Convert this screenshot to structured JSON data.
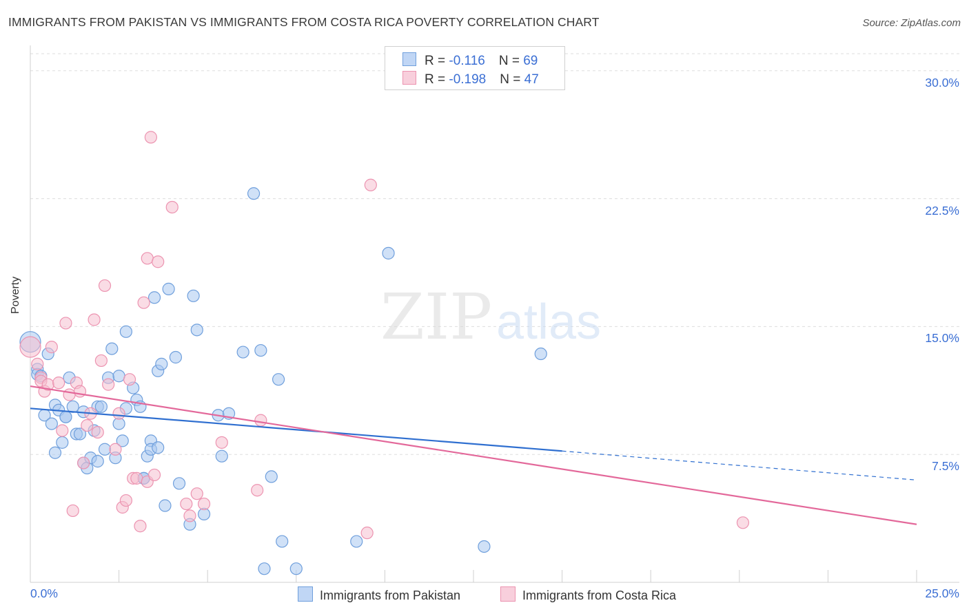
{
  "header": {
    "title": "IMMIGRANTS FROM PAKISTAN VS IMMIGRANTS FROM COSTA RICA POVERTY CORRELATION CHART",
    "source": "Source: ZipAtlas.com"
  },
  "watermark": {
    "zip": "ZIP",
    "atlas": "atlas"
  },
  "legend": {
    "rows": [
      {
        "r_label": "R = ",
        "r_value": "-0.116",
        "n_label": "N = ",
        "n_value": "69"
      },
      {
        "r_label": "R = ",
        "r_value": "-0.198",
        "n_label": "N = ",
        "n_value": "47"
      }
    ]
  },
  "colors": {
    "pakistan_fill": "#a9c8f0",
    "pakistan_stroke": "#6f9fdc",
    "pakistan_line": "#2f6fd0",
    "costarica_fill": "#f6bfd0",
    "costarica_stroke": "#ec93b0",
    "costarica_line": "#e3689a",
    "tick_color": "#3b6fd4",
    "grid": "#dddddd"
  },
  "chart_data": {
    "type": "scatter",
    "title": "IMMIGRANTS FROM PAKISTAN VS IMMIGRANTS FROM COSTA RICA POVERTY CORRELATION CHART",
    "xlabel": "",
    "ylabel": "Poverty",
    "xlim": [
      0,
      25
    ],
    "ylim": [
      0,
      31
    ],
    "x_tick_labels": [
      "0.0%",
      "25.0%"
    ],
    "y_ticks": [
      7.5,
      15.0,
      22.5,
      30.0
    ],
    "y_tick_labels": [
      "7.5%",
      "15.0%",
      "22.5%",
      "30.0%"
    ],
    "grid": "horizontal dashed",
    "legend_position": "top-center",
    "series": [
      {
        "name": "Immigrants from Pakistan",
        "trend": {
          "x": [
            0,
            15
          ],
          "y": [
            10.2,
            7.7
          ],
          "dashed_extension_to": [
            25,
            6.0
          ]
        },
        "points": [
          [
            0.0,
            14.1
          ],
          [
            0.2,
            12.5
          ],
          [
            0.2,
            12.2
          ],
          [
            0.3,
            12.1
          ],
          [
            0.5,
            13.4
          ],
          [
            0.4,
            9.8
          ],
          [
            0.6,
            9.3
          ],
          [
            0.7,
            10.4
          ],
          [
            0.7,
            7.6
          ],
          [
            0.8,
            10.1
          ],
          [
            0.9,
            8.2
          ],
          [
            1.0,
            9.7
          ],
          [
            1.0,
            9.7
          ],
          [
            1.1,
            12.0
          ],
          [
            1.2,
            10.3
          ],
          [
            1.3,
            8.7
          ],
          [
            1.4,
            8.7
          ],
          [
            1.5,
            10.0
          ],
          [
            1.5,
            7.0
          ],
          [
            1.6,
            6.7
          ],
          [
            1.7,
            7.3
          ],
          [
            1.8,
            8.9
          ],
          [
            1.9,
            7.1
          ],
          [
            1.9,
            10.3
          ],
          [
            2.0,
            10.3
          ],
          [
            2.1,
            7.8
          ],
          [
            2.2,
            12.0
          ],
          [
            2.3,
            13.7
          ],
          [
            2.4,
            7.3
          ],
          [
            2.5,
            12.1
          ],
          [
            2.5,
            9.3
          ],
          [
            2.6,
            8.3
          ],
          [
            2.7,
            14.7
          ],
          [
            2.7,
            10.2
          ],
          [
            2.9,
            11.4
          ],
          [
            3.0,
            10.7
          ],
          [
            3.1,
            10.3
          ],
          [
            3.2,
            6.1
          ],
          [
            3.2,
            6.1
          ],
          [
            3.3,
            7.4
          ],
          [
            3.4,
            8.3
          ],
          [
            3.4,
            7.8
          ],
          [
            3.5,
            16.7
          ],
          [
            3.6,
            7.9
          ],
          [
            3.6,
            12.4
          ],
          [
            3.7,
            12.8
          ],
          [
            3.8,
            4.5
          ],
          [
            3.9,
            17.2
          ],
          [
            4.1,
            13.2
          ],
          [
            4.2,
            5.8
          ],
          [
            4.5,
            3.4
          ],
          [
            4.6,
            16.8
          ],
          [
            4.7,
            14.8
          ],
          [
            4.9,
            4.0
          ],
          [
            5.3,
            9.8
          ],
          [
            5.4,
            7.4
          ],
          [
            5.6,
            9.9
          ],
          [
            6.3,
            22.8
          ],
          [
            6.5,
            13.6
          ],
          [
            6.6,
            0.8
          ],
          [
            6.8,
            6.2
          ],
          [
            7.0,
            11.9
          ],
          [
            7.1,
            2.4
          ],
          [
            7.5,
            0.8
          ],
          [
            9.2,
            2.4
          ],
          [
            10.1,
            19.3
          ],
          [
            12.8,
            2.1
          ],
          [
            14.4,
            13.4
          ],
          [
            6.0,
            13.5
          ]
        ]
      },
      {
        "name": "Immigrants from Costa Rica",
        "trend": {
          "x": [
            0,
            25
          ],
          "y": [
            11.5,
            3.4
          ]
        },
        "points": [
          [
            0.0,
            13.8
          ],
          [
            0.2,
            12.8
          ],
          [
            0.3,
            12.0
          ],
          [
            0.3,
            11.8
          ],
          [
            0.4,
            11.2
          ],
          [
            0.5,
            11.6
          ],
          [
            0.6,
            13.8
          ],
          [
            0.8,
            11.7
          ],
          [
            0.9,
            8.9
          ],
          [
            1.0,
            15.2
          ],
          [
            1.1,
            11.0
          ],
          [
            1.2,
            4.2
          ],
          [
            1.3,
            11.7
          ],
          [
            1.4,
            11.2
          ],
          [
            1.5,
            7.0
          ],
          [
            1.6,
            9.2
          ],
          [
            1.7,
            9.9
          ],
          [
            1.8,
            15.4
          ],
          [
            1.9,
            8.8
          ],
          [
            2.0,
            13.0
          ],
          [
            2.1,
            17.4
          ],
          [
            2.2,
            11.6
          ],
          [
            2.4,
            7.8
          ],
          [
            2.5,
            9.9
          ],
          [
            2.6,
            4.4
          ],
          [
            2.7,
            4.8
          ],
          [
            2.8,
            11.9
          ],
          [
            2.9,
            6.1
          ],
          [
            3.0,
            6.1
          ],
          [
            3.1,
            3.3
          ],
          [
            3.2,
            16.4
          ],
          [
            3.3,
            5.9
          ],
          [
            3.3,
            19.0
          ],
          [
            3.4,
            26.1
          ],
          [
            3.5,
            6.3
          ],
          [
            3.6,
            18.8
          ],
          [
            4.0,
            22.0
          ],
          [
            4.4,
            4.6
          ],
          [
            4.5,
            3.9
          ],
          [
            4.7,
            5.2
          ],
          [
            4.9,
            4.6
          ],
          [
            5.4,
            8.2
          ],
          [
            6.4,
            5.4
          ],
          [
            6.5,
            9.5
          ],
          [
            9.5,
            2.9
          ],
          [
            9.6,
            23.3
          ],
          [
            20.1,
            3.5
          ]
        ]
      }
    ]
  },
  "bottom_legend": {
    "items": [
      {
        "label": "Immigrants from Pakistan"
      },
      {
        "label": "Immigrants from Costa Rica"
      }
    ]
  }
}
